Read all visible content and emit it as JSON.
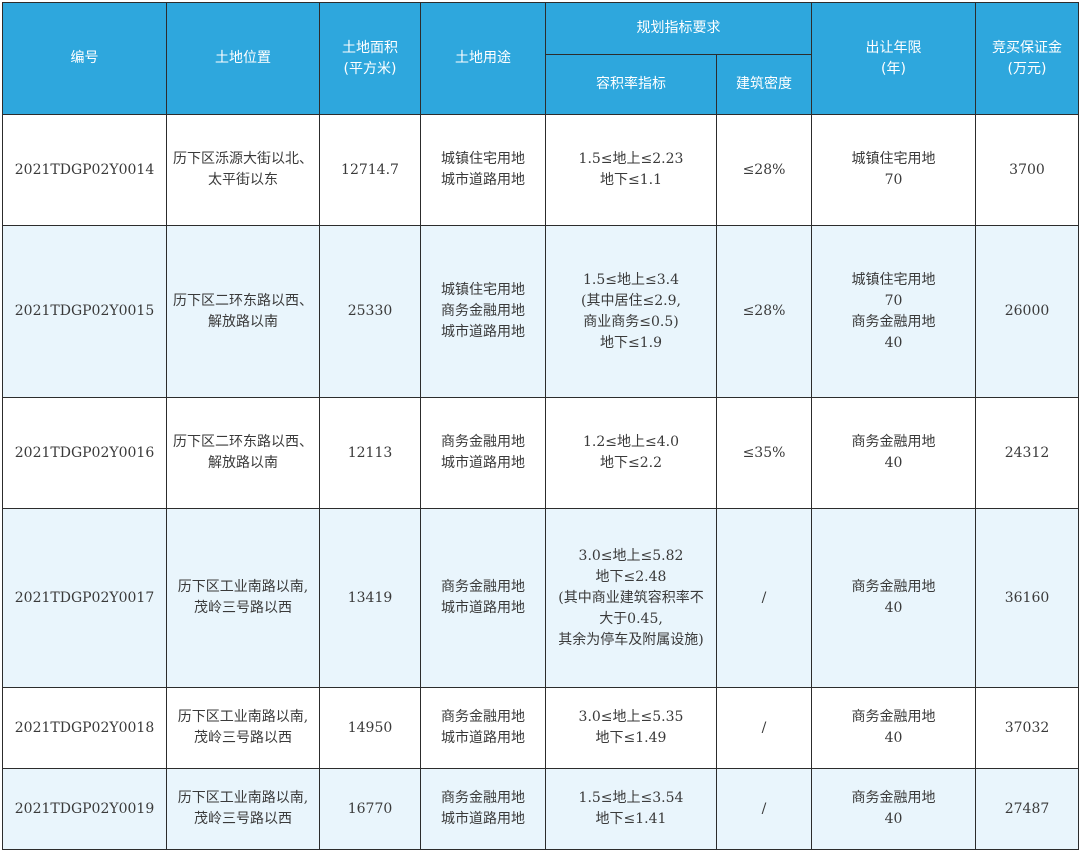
{
  "header": {
    "number": "编号",
    "location": "土地位置",
    "area": [
      "土地面积",
      "(平方米)"
    ],
    "use": "土地用途",
    "planning": "规划指标要求",
    "far": "容积率指标",
    "density": "建筑密度",
    "term": [
      "出让年限",
      "(年)"
    ],
    "deposit": [
      "竞买保证金",
      "(万元)"
    ]
  },
  "rows": [
    {
      "number": "2021TDGP02Y0014",
      "location": [
        "历下区泺源大街以北、",
        "太平街以东"
      ],
      "area": "12714.7",
      "use": [
        "城镇住宅用地",
        "城市道路用地"
      ],
      "far": [
        "1.5≤地上≤2.23",
        "地下≤1.1"
      ],
      "density": "≤28%",
      "term": [
        "城镇住宅用地",
        "70"
      ],
      "deposit": "3700"
    },
    {
      "number": "2021TDGP02Y0015",
      "location": [
        "历下区二环东路以西、",
        "解放路以南"
      ],
      "area": "25330",
      "use": [
        "城镇住宅用地",
        "商务金融用地",
        "城市道路用地"
      ],
      "far": [
        "1.5≤地上≤3.4",
        "(其中居住≤2.9,",
        "商业商务≤0.5)",
        "地下≤1.9"
      ],
      "density": "≤28%",
      "term": [
        "城镇住宅用地",
        "70",
        "商务金融用地",
        "40"
      ],
      "deposit": "26000"
    },
    {
      "number": "2021TDGP02Y0016",
      "location": [
        "历下区二环东路以西、",
        "解放路以南"
      ],
      "area": "12113",
      "use": [
        "商务金融用地",
        "城市道路用地"
      ],
      "far": [
        "1.2≤地上≤4.0",
        "地下≤2.2"
      ],
      "density": "≤35%",
      "term": [
        "商务金融用地",
        "40"
      ],
      "deposit": "24312"
    },
    {
      "number": "2021TDGP02Y0017",
      "location": [
        "历下区工业南路以南,",
        "茂岭三号路以西"
      ],
      "area": "13419",
      "use": [
        "商务金融用地",
        "城市道路用地"
      ],
      "far": [
        "3.0≤地上≤5.82",
        "地下≤2.48",
        "(其中商业建筑容积率不",
        "大于0.45,",
        "其余为停车及附属设施)"
      ],
      "density": "/",
      "term": [
        "商务金融用地",
        "40"
      ],
      "deposit": "36160"
    },
    {
      "number": "2021TDGP02Y0018",
      "location": [
        "历下区工业南路以南,",
        "茂岭三号路以西"
      ],
      "area": "14950",
      "use": [
        "商务金融用地",
        "城市道路用地"
      ],
      "far": [
        "3.0≤地上≤5.35",
        "地下≤1.49"
      ],
      "density": "/",
      "term": [
        "商务金融用地",
        "40"
      ],
      "deposit": "37032"
    },
    {
      "number": "2021TDGP02Y0019",
      "location": [
        "历下区工业南路以南,",
        "茂岭三号路以西"
      ],
      "area": "16770",
      "use": [
        "商务金融用地",
        "城市道路用地"
      ],
      "far": [
        "1.5≤地上≤3.54",
        "地下≤1.41"
      ],
      "density": "/",
      "term": [
        "商务金融用地",
        "40"
      ],
      "deposit": "27487"
    }
  ]
}
